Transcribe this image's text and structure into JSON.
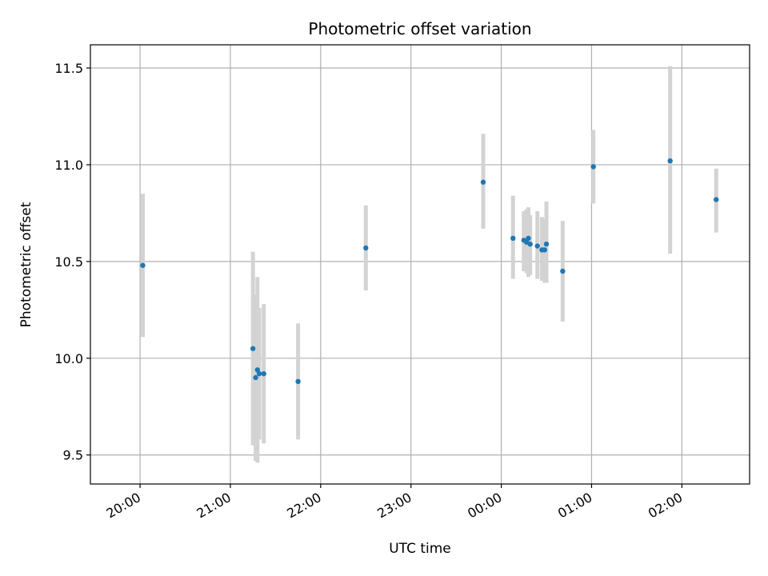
{
  "chart_data": {
    "type": "scatter",
    "title": "Photometric offset variation",
    "xlabel": "UTC time",
    "ylabel": "Photometric offset",
    "xlim_hours": [
      19.45,
      26.75
    ],
    "ylim": [
      9.35,
      11.62
    ],
    "xticks": [
      {
        "label": "20:00",
        "value": 20.0
      },
      {
        "label": "21:00",
        "value": 21.0
      },
      {
        "label": "22:00",
        "value": 22.0
      },
      {
        "label": "23:00",
        "value": 23.0
      },
      {
        "label": "00:00",
        "value": 24.0
      },
      {
        "label": "01:00",
        "value": 25.0
      },
      {
        "label": "02:00",
        "value": 26.0
      }
    ],
    "yticks": [
      {
        "label": "9.5",
        "value": 9.5
      },
      {
        "label": "10.0",
        "value": 10.0
      },
      {
        "label": "10.5",
        "value": 10.5
      },
      {
        "label": "11.0",
        "value": 11.0
      },
      {
        "label": "11.5",
        "value": 11.5
      }
    ],
    "grid": true,
    "colors": {
      "point": "#1f77b4",
      "errorbar": "#d3d3d3",
      "grid": "#b0b0b0"
    },
    "points": [
      {
        "t": 20.03,
        "y": 10.48,
        "lo": 10.11,
        "hi": 10.85
      },
      {
        "t": 21.25,
        "y": 10.05,
        "lo": 9.55,
        "hi": 10.55
      },
      {
        "t": 21.28,
        "y": 9.9,
        "lo": 9.47,
        "hi": 10.33
      },
      {
        "t": 21.3,
        "y": 9.94,
        "lo": 9.46,
        "hi": 10.42
      },
      {
        "t": 21.32,
        "y": 9.92,
        "lo": 9.58,
        "hi": 10.26
      },
      {
        "t": 21.37,
        "y": 9.92,
        "lo": 9.56,
        "hi": 10.28
      },
      {
        "t": 21.75,
        "y": 9.88,
        "lo": 9.58,
        "hi": 10.18
      },
      {
        "t": 22.5,
        "y": 10.57,
        "lo": 10.35,
        "hi": 10.79
      },
      {
        "t": 23.8,
        "y": 10.91,
        "lo": 10.67,
        "hi": 11.16
      },
      {
        "t": 24.13,
        "y": 10.62,
        "lo": 10.41,
        "hi": 10.84
      },
      {
        "t": 24.25,
        "y": 10.61,
        "lo": 10.45,
        "hi": 10.76
      },
      {
        "t": 24.28,
        "y": 10.6,
        "lo": 10.44,
        "hi": 10.77
      },
      {
        "t": 24.3,
        "y": 10.62,
        "lo": 10.42,
        "hi": 10.78
      },
      {
        "t": 24.32,
        "y": 10.59,
        "lo": 10.43,
        "hi": 10.74
      },
      {
        "t": 24.4,
        "y": 10.58,
        "lo": 10.41,
        "hi": 10.76
      },
      {
        "t": 24.45,
        "y": 10.56,
        "lo": 10.4,
        "hi": 10.73
      },
      {
        "t": 24.48,
        "y": 10.56,
        "lo": 10.39,
        "hi": 10.72
      },
      {
        "t": 24.5,
        "y": 10.59,
        "lo": 10.39,
        "hi": 10.81
      },
      {
        "t": 24.68,
        "y": 10.45,
        "lo": 10.19,
        "hi": 10.71
      },
      {
        "t": 25.02,
        "y": 10.99,
        "lo": 10.8,
        "hi": 11.18
      },
      {
        "t": 25.87,
        "y": 11.02,
        "lo": 10.54,
        "hi": 11.51
      },
      {
        "t": 26.38,
        "y": 10.82,
        "lo": 10.65,
        "hi": 10.98
      }
    ]
  }
}
